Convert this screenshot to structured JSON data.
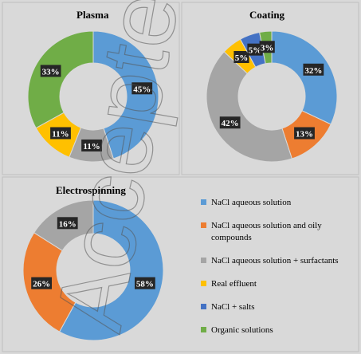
{
  "watermark": "Accepted",
  "legend": [
    {
      "label_lines": [
        "NaCl aqueous solution"
      ],
      "color": "#5b9bd5"
    },
    {
      "label_lines": [
        "NaCl aqueous solution and oily",
        "compounds"
      ],
      "color": "#ed7d31"
    },
    {
      "label_lines": [
        "NaCl aqueous solution + surfactants"
      ],
      "color": "#a5a5a5"
    },
    {
      "label_lines": [
        "Real effluent"
      ],
      "color": "#ffc000"
    },
    {
      "label_lines": [
        "NaCl + salts"
      ],
      "color": "#4472c4"
    },
    {
      "label_lines": [
        "Organic solutions"
      ],
      "color": "#70ad47"
    }
  ],
  "chart_data": [
    {
      "type": "pie",
      "title": "Plasma",
      "donut": true,
      "categories": [
        "NaCl aqueous solution",
        "NaCl aqueous solution + surfactants",
        "Real effluent",
        "Organic solutions"
      ],
      "values": [
        45,
        11,
        11,
        33
      ],
      "colors": [
        "#5b9bd5",
        "#a5a5a5",
        "#ffc000",
        "#70ad47"
      ],
      "labels": [
        "45%",
        "11%",
        "11%",
        "33%"
      ]
    },
    {
      "type": "pie",
      "title": "Coating",
      "donut": true,
      "categories": [
        "NaCl aqueous solution",
        "NaCl aqueous solution and oily compounds",
        "NaCl aqueous solution + surfactants",
        "Real effluent",
        "NaCl + salts",
        "Organic solutions"
      ],
      "values": [
        32,
        13,
        42,
        5,
        5,
        3
      ],
      "colors": [
        "#5b9bd5",
        "#ed7d31",
        "#a5a5a5",
        "#ffc000",
        "#4472c4",
        "#70ad47"
      ],
      "labels": [
        "32%",
        "13%",
        "42%",
        "5%",
        "5%",
        "3%"
      ]
    },
    {
      "type": "pie",
      "title": "Electrospinning",
      "donut": true,
      "categories": [
        "NaCl aqueous solution",
        "NaCl aqueous solution and oily compounds",
        "NaCl aqueous solution + surfactants"
      ],
      "values": [
        58,
        26,
        16
      ],
      "colors": [
        "#5b9bd5",
        "#ed7d31",
        "#a5a5a5"
      ],
      "labels": [
        "58%",
        "26%",
        "16%"
      ]
    }
  ]
}
